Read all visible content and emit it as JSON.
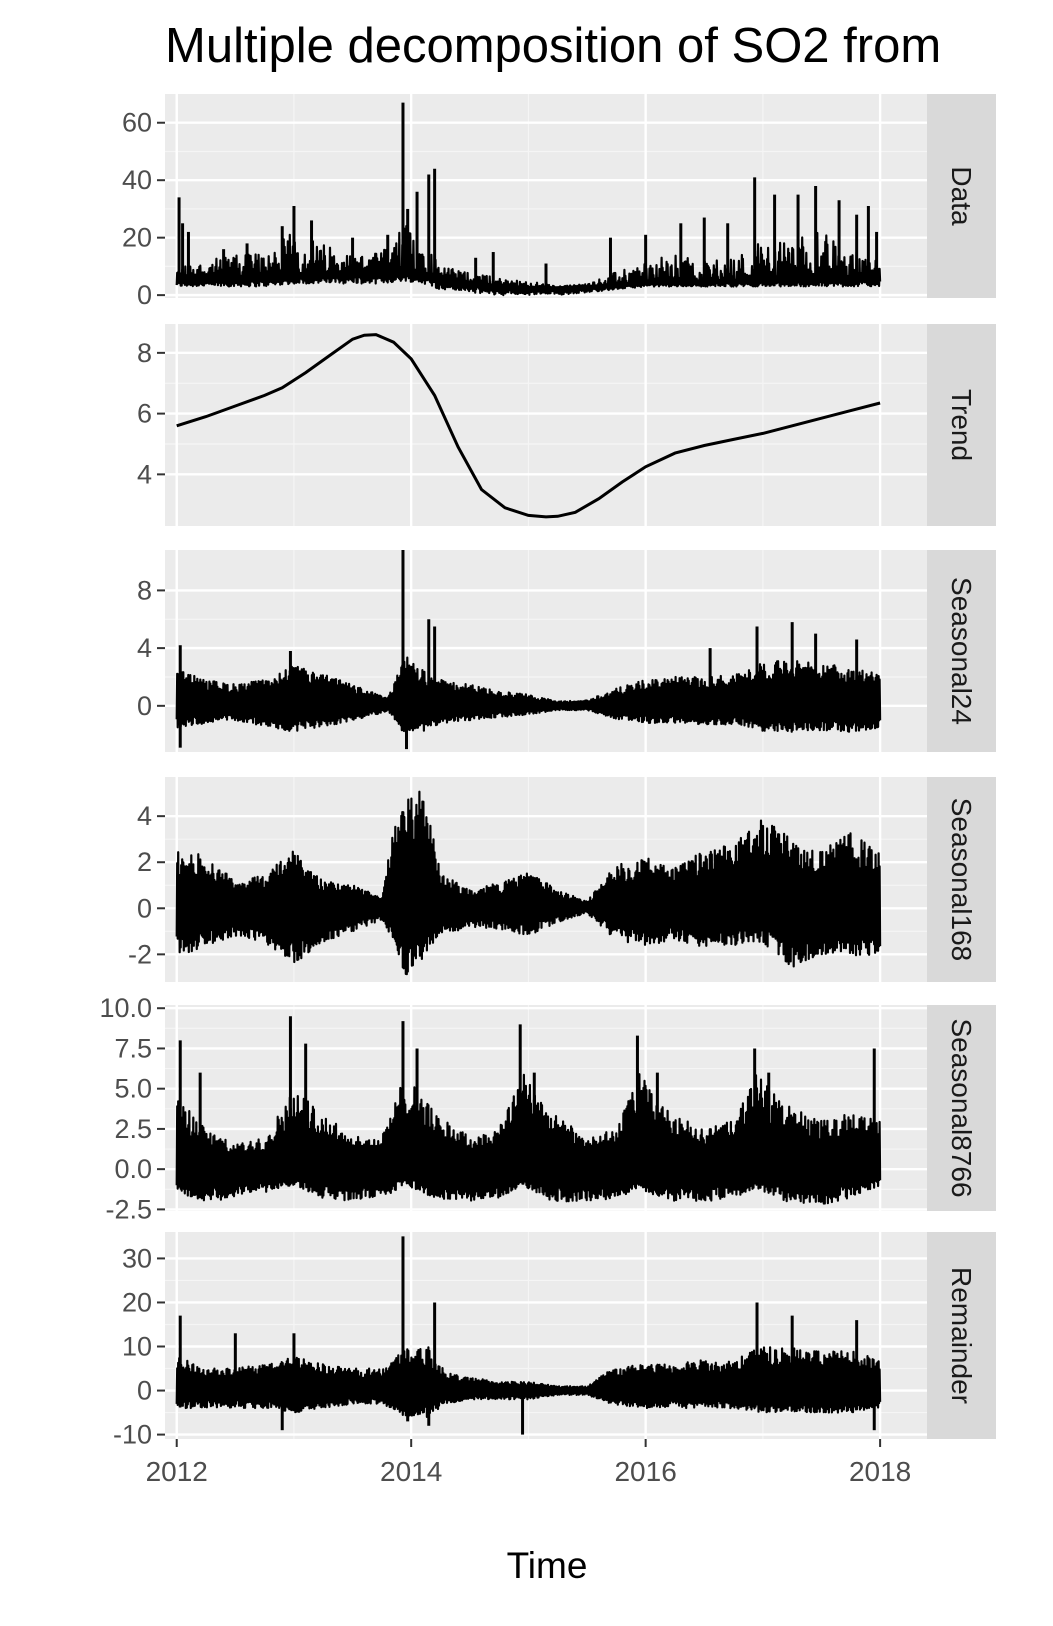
{
  "chart_data": {
    "type": "line",
    "title": "Multiple decomposition of  SO2 from",
    "xlabel": "Time",
    "ylabel": "",
    "x_range": [
      2011.9,
      2018.4
    ],
    "x_ticks": [
      2012,
      2014,
      2016,
      2018
    ],
    "x_tick_labels": [
      "2012",
      "2014",
      "2016",
      "2018"
    ],
    "grid": true,
    "panels": [
      {
        "name": "Data",
        "ylim": [
          -1,
          70
        ],
        "y_ticks": [
          0,
          20,
          40,
          60
        ],
        "y_tick_labels": [
          "0",
          "20",
          "40",
          "60"
        ],
        "series": [
          {
            "values_x": [
              2012.0,
              2012.25,
              2012.5,
              2012.75,
              2013.0,
              2013.25,
              2013.5,
              2013.75,
              2013.95,
              2014.1,
              2014.25,
              2014.5,
              2014.75,
              2015.0,
              2015.25,
              2015.5,
              2015.75,
              2016.0,
              2016.25,
              2016.5,
              2016.75,
              2017.0,
              2017.25,
              2017.5,
              2017.75,
              2018.0
            ],
            "values": [
              5.6,
              5.9,
              6.3,
              6.7,
              7.2,
              7.8,
              8.4,
              8.5,
              8.3,
              7.8,
              6.5,
              4.5,
              3.2,
              2.7,
              2.6,
              3.0,
              3.7,
              4.3,
              4.8,
              5.0,
              5.2,
              5.3,
              5.5,
              5.8,
              6.0,
              6.3
            ],
            "noise_upper": [
              10,
              12,
              14,
              16,
              22,
              18,
              14,
              15,
              25,
              22,
              10,
              8,
              6,
              5,
              3,
              4,
              8,
              12,
              14,
              12,
              13,
              20,
              20,
              22,
              16,
              12
            ],
            "noise_lower": [
              3,
              3,
              3,
              3,
              4,
              4,
              4,
              4,
              5,
              4,
              2,
              1,
              0,
              0,
              0,
              1,
              2,
              3,
              3,
              3,
              3,
              3,
              3,
              3,
              3,
              3
            ],
            "spikes": [
              [
                2012.02,
                34
              ],
              [
                2012.05,
                25
              ],
              [
                2012.1,
                22
              ],
              [
                2012.4,
                16
              ],
              [
                2012.6,
                18
              ],
              [
                2012.9,
                24
              ],
              [
                2013.0,
                31
              ],
              [
                2013.15,
                26
              ],
              [
                2013.5,
                20
              ],
              [
                2013.8,
                21
              ],
              [
                2013.93,
                67
              ],
              [
                2013.97,
                30
              ],
              [
                2014.05,
                36
              ],
              [
                2014.15,
                42
              ],
              [
                2014.2,
                44
              ],
              [
                2014.55,
                13
              ],
              [
                2014.7,
                15
              ],
              [
                2015.15,
                11
              ],
              [
                2015.7,
                20
              ],
              [
                2016.0,
                21
              ],
              [
                2016.3,
                25
              ],
              [
                2016.5,
                27
              ],
              [
                2016.7,
                25
              ],
              [
                2016.93,
                41
              ],
              [
                2017.1,
                35
              ],
              [
                2017.3,
                35
              ],
              [
                2017.45,
                38
              ],
              [
                2017.65,
                33
              ],
              [
                2017.8,
                28
              ],
              [
                2017.9,
                31
              ],
              [
                2017.97,
                22
              ]
            ]
          }
        ]
      },
      {
        "name": "Trend",
        "ylim": [
          2.3,
          8.95
        ],
        "y_ticks": [
          4,
          6,
          8
        ],
        "y_tick_labels": [
          "4",
          "6",
          "8"
        ],
        "series": [
          {
            "values_x": [
              2012.0,
              2012.25,
              2012.5,
              2012.75,
              2012.9,
              2013.1,
              2013.3,
              2013.5,
              2013.6,
              2013.7,
              2013.85,
              2014.0,
              2014.2,
              2014.4,
              2014.6,
              2014.8,
              2015.0,
              2015.15,
              2015.25,
              2015.4,
              2015.6,
              2015.8,
              2016.0,
              2016.25,
              2016.5,
              2016.75,
              2017.0,
              2017.25,
              2017.5,
              2017.75,
              2018.0
            ],
            "values": [
              5.6,
              5.9,
              6.25,
              6.6,
              6.85,
              7.35,
              7.9,
              8.45,
              8.58,
              8.6,
              8.35,
              7.8,
              6.6,
              4.9,
              3.5,
              2.9,
              2.65,
              2.6,
              2.62,
              2.75,
              3.2,
              3.75,
              4.25,
              4.7,
              4.95,
              5.15,
              5.35,
              5.6,
              5.85,
              6.1,
              6.35
            ]
          }
        ]
      },
      {
        "name": "Seasonal24",
        "ylim": [
          -3.2,
          10.8
        ],
        "y_ticks": [
          0,
          4,
          8
        ],
        "y_tick_labels": [
          "0",
          "4",
          "8"
        ],
        "series": [
          {
            "envelope_x": [
              2012.0,
              2012.25,
              2012.5,
              2012.75,
              2013.0,
              2013.25,
              2013.5,
              2013.8,
              2013.95,
              2014.1,
              2014.25,
              2014.5,
              2014.75,
              2015.0,
              2015.25,
              2015.5,
              2015.75,
              2016.0,
              2016.25,
              2016.5,
              2016.75,
              2017.0,
              2017.25,
              2017.5,
              2017.75,
              2018.0
            ],
            "envelope_upper": [
              2.5,
              1.8,
              1.5,
              1.8,
              2.8,
              2.2,
              1.5,
              0.5,
              3.5,
              2.5,
              1.8,
              1.5,
              1.0,
              0.8,
              0.3,
              0.4,
              1.2,
              1.8,
              2.0,
              2.0,
              2.2,
              3.0,
              3.2,
              3.0,
              2.8,
              2.2
            ],
            "envelope_lower": [
              -1.5,
              -1.2,
              -1.0,
              -1.4,
              -1.8,
              -1.5,
              -1.0,
              -0.4,
              -2.0,
              -1.8,
              -1.2,
              -1.0,
              -0.8,
              -0.6,
              -0.3,
              -0.3,
              -0.9,
              -1.2,
              -1.2,
              -1.3,
              -1.3,
              -1.8,
              -1.8,
              -1.7,
              -1.8,
              -1.6
            ],
            "spikes": [
              [
                2012.03,
                4.2
              ],
              [
                2012.97,
                3.8
              ],
              [
                2013.93,
                10.8
              ],
              [
                2013.96,
                -3.0
              ],
              [
                2014.15,
                6.0
              ],
              [
                2014.2,
                5.5
              ],
              [
                2016.55,
                4.0
              ],
              [
                2016.95,
                5.5
              ],
              [
                2017.25,
                5.8
              ],
              [
                2017.45,
                5.0
              ],
              [
                2017.8,
                4.6
              ],
              [
                2012.03,
                -2.9
              ]
            ]
          }
        ]
      },
      {
        "name": "Seasonal168",
        "ylim": [
          -3.2,
          5.7
        ],
        "y_ticks": [
          -2,
          0,
          2,
          4
        ],
        "y_tick_labels": [
          "-2",
          "0",
          "2",
          "4"
        ],
        "series": [
          {
            "envelope_x": [
              2012.0,
              2012.25,
              2012.5,
              2012.75,
              2013.0,
              2013.25,
              2013.5,
              2013.75,
              2013.85,
              2013.95,
              2014.1,
              2014.25,
              2014.5,
              2014.75,
              2015.0,
              2015.25,
              2015.5,
              2015.75,
              2016.0,
              2016.25,
              2016.5,
              2016.75,
              2017.0,
              2017.25,
              2017.5,
              2017.75,
              2018.0
            ],
            "envelope_upper": [
              2.5,
              2.3,
              1.2,
              1.5,
              2.5,
              1.2,
              1.0,
              0.5,
              3.5,
              4.6,
              5.3,
              1.5,
              0.8,
              1.1,
              1.6,
              0.8,
              0.3,
              1.9,
              2.2,
              1.8,
              2.5,
              2.8,
              4.0,
              3.0,
              2.5,
              3.3,
              2.4
            ],
            "envelope_lower": [
              -2.0,
              -1.8,
              -1.2,
              -1.5,
              -2.4,
              -1.5,
              -1.0,
              -0.5,
              -1.5,
              -3.0,
              -2.2,
              -1.2,
              -0.8,
              -0.9,
              -1.2,
              -0.6,
              -0.2,
              -1.4,
              -1.6,
              -1.4,
              -1.7,
              -1.6,
              -1.5,
              -2.6,
              -2.0,
              -2.0,
              -2.3
            ]
          }
        ]
      },
      {
        "name": "Seasonal8766",
        "ylim": [
          -2.6,
          10.2
        ],
        "y_ticks": [
          -2.5,
          0.0,
          2.5,
          5.0,
          7.5,
          10.0
        ],
        "y_tick_labels": [
          "-2.5",
          "0.0",
          "2.5",
          "5.0",
          "7.5",
          "10.0"
        ],
        "series": [
          {
            "envelope_x": [
              2012.0,
              2012.25,
              2012.5,
              2012.75,
              2013.0,
              2013.25,
              2013.5,
              2013.75,
              2013.95,
              2014.2,
              2014.5,
              2014.75,
              2014.95,
              2015.2,
              2015.5,
              2015.75,
              2015.95,
              2016.2,
              2016.5,
              2016.75,
              2016.95,
              2017.2,
              2017.5,
              2017.75,
              2018.0
            ],
            "envelope_upper": [
              4.5,
              2.5,
              1.5,
              2.0,
              5.0,
              3.5,
              2.0,
              2.0,
              6.0,
              3.5,
              2.0,
              2.5,
              6.5,
              3.5,
              2.0,
              2.5,
              6.0,
              3.5,
              2.5,
              3.0,
              6.0,
              4.0,
              3.0,
              3.5,
              3.0
            ],
            "envelope_lower": [
              -1.5,
              -2.0,
              -1.8,
              -1.5,
              -1.0,
              -1.8,
              -2.0,
              -1.8,
              -1.0,
              -1.8,
              -2.0,
              -1.8,
              -1.0,
              -2.0,
              -2.0,
              -1.8,
              -1.2,
              -2.0,
              -2.0,
              -1.8,
              -1.2,
              -2.0,
              -2.2,
              -1.8,
              -1.0
            ],
            "spikes": [
              [
                2012.03,
                8.0
              ],
              [
                2012.2,
                6.0
              ],
              [
                2012.97,
                9.5
              ],
              [
                2013.1,
                7.8
              ],
              [
                2013.93,
                9.2
              ],
              [
                2014.05,
                7.5
              ],
              [
                2014.93,
                9.0
              ],
              [
                2015.05,
                6.0
              ],
              [
                2015.93,
                8.3
              ],
              [
                2016.1,
                6.0
              ],
              [
                2016.93,
                7.5
              ],
              [
                2017.05,
                6.0
              ],
              [
                2017.95,
                7.5
              ]
            ]
          }
        ]
      },
      {
        "name": "Remainder",
        "ylim": [
          -11,
          36
        ],
        "y_ticks": [
          -10,
          0,
          10,
          20,
          30
        ],
        "y_tick_labels": [
          "-10",
          "0",
          "10",
          "20",
          "30"
        ],
        "series": [
          {
            "envelope_x": [
              2012.0,
              2012.25,
              2012.5,
              2012.75,
              2013.0,
              2013.25,
              2013.5,
              2013.75,
              2013.95,
              2014.15,
              2014.3,
              2014.5,
              2014.75,
              2015.0,
              2015.25,
              2015.5,
              2015.7,
              2016.0,
              2016.25,
              2016.5,
              2016.75,
              2017.0,
              2017.25,
              2017.5,
              2017.75,
              2018.0
            ],
            "envelope_upper": [
              8,
              5,
              5,
              6,
              8,
              6,
              5,
              5,
              10,
              10,
              4,
              3,
              2,
              2,
              1,
              1,
              5,
              6,
              6,
              7,
              7,
              10,
              10,
              9,
              9,
              7
            ],
            "envelope_lower": [
              -4,
              -4,
              -4,
              -4,
              -5,
              -4,
              -3,
              -3,
              -6,
              -6,
              -3,
              -2,
              -2,
              -2,
              -1,
              -1,
              -3,
              -4,
              -4,
              -4,
              -4,
              -5,
              -5,
              -5,
              -5,
              -4
            ],
            "spikes": [
              [
                2012.03,
                17
              ],
              [
                2012.5,
                13
              ],
              [
                2013.0,
                13
              ],
              [
                2013.93,
                35
              ],
              [
                2013.97,
                -7
              ],
              [
                2014.2,
                20
              ],
              [
                2014.15,
                -8
              ],
              [
                2012.9,
                -9
              ],
              [
                2014.95,
                -10
              ],
              [
                2016.95,
                20
              ],
              [
                2017.25,
                17
              ],
              [
                2017.8,
                16
              ],
              [
                2017.95,
                -9
              ]
            ]
          }
        ]
      }
    ]
  }
}
